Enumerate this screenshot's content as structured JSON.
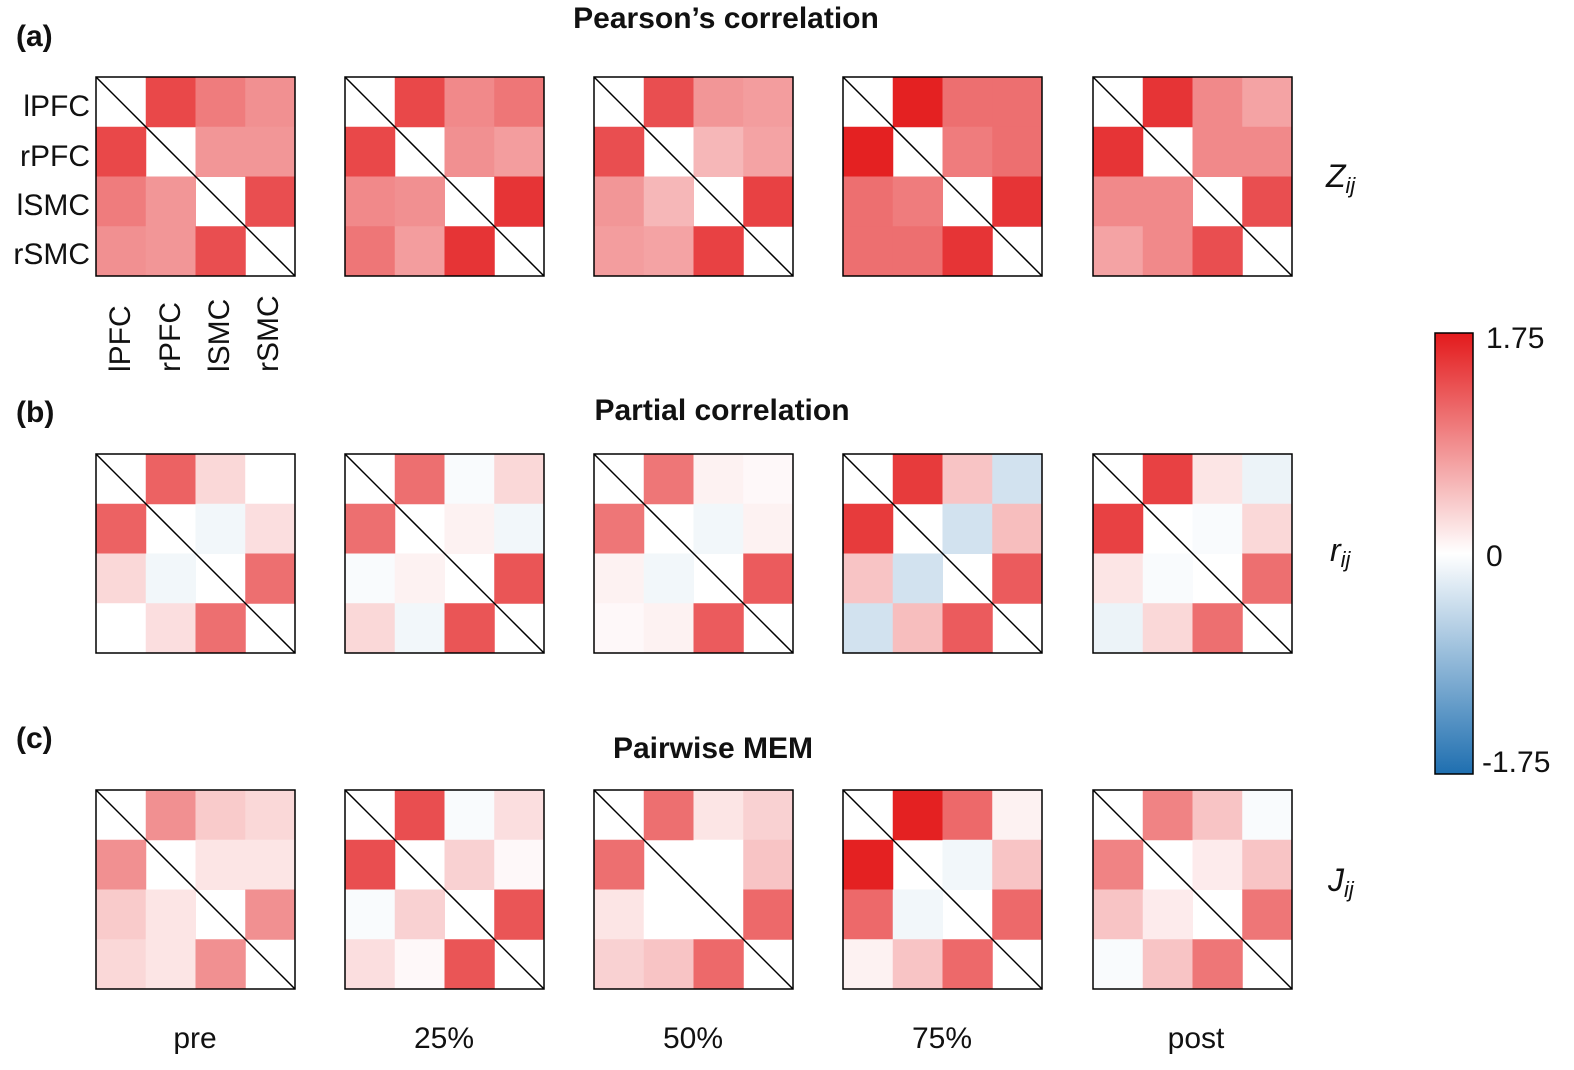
{
  "panels": [
    {
      "letter": "(a)",
      "title": "Pearson’s correlation",
      "metric": "Z",
      "metric_sub": "ij"
    },
    {
      "letter": "(b)",
      "title": "Partial correlation",
      "metric": "r",
      "metric_sub": "ij"
    },
    {
      "letter": "(c)",
      "title": "Pairwise MEM",
      "metric": "J",
      "metric_sub": "ij"
    }
  ],
  "region_labels": [
    "lPFC",
    "rPFC",
    "lSMC",
    "rSMC"
  ],
  "conditions": [
    "pre",
    "25%",
    "50%",
    "75%",
    "post"
  ],
  "colorbar": {
    "max_label": "1.75",
    "mid_label": "0",
    "min_label": "-1.75",
    "max_color": "#e31a1c",
    "mid_color": "#ffffff",
    "min_color": "#1f6fb0"
  },
  "chart_data": {
    "type": "heatmap",
    "vmin": -1.75,
    "vmax": 1.75,
    "pairs": [
      "lPFC-rPFC",
      "lPFC-lSMC",
      "lPFC-rSMC",
      "rPFC-lSMC",
      "rPFC-rSMC",
      "lSMC-rSMC"
    ],
    "matrices": [
      {
        "panel": "Pearson’s correlation",
        "condition": "pre",
        "values": [
          1.4,
          1.0,
          0.85,
          0.8,
          0.8,
          1.35
        ]
      },
      {
        "panel": "Pearson’s correlation",
        "condition": "25%",
        "values": [
          1.4,
          0.9,
          1.05,
          0.85,
          0.75,
          1.55
        ]
      },
      {
        "panel": "Pearson’s correlation",
        "condition": "50%",
        "values": [
          1.35,
          0.8,
          0.75,
          0.55,
          0.7,
          1.45
        ]
      },
      {
        "panel": "Pearson’s correlation",
        "condition": "75%",
        "values": [
          1.7,
          1.1,
          1.1,
          1.0,
          1.1,
          1.55
        ]
      },
      {
        "panel": "Pearson’s correlation",
        "condition": "post",
        "values": [
          1.55,
          0.9,
          0.7,
          0.9,
          0.9,
          1.35
        ]
      },
      {
        "panel": "Partial correlation",
        "condition": "pre",
        "values": [
          1.2,
          0.3,
          0.0,
          -0.1,
          0.25,
          1.1
        ]
      },
      {
        "panel": "Partial correlation",
        "condition": "25%",
        "values": [
          1.1,
          -0.05,
          0.3,
          0.1,
          -0.1,
          1.3
        ]
      },
      {
        "panel": "Partial correlation",
        "condition": "50%",
        "values": [
          1.05,
          0.1,
          0.05,
          -0.1,
          0.1,
          1.25
        ]
      },
      {
        "panel": "Partial correlation",
        "condition": "75%",
        "values": [
          1.5,
          0.45,
          -0.35,
          -0.35,
          0.5,
          1.25
        ]
      },
      {
        "panel": "Partial correlation",
        "condition": "post",
        "values": [
          1.45,
          0.2,
          -0.15,
          -0.05,
          0.3,
          1.1
        ]
      },
      {
        "panel": "Pairwise MEM",
        "condition": "pre",
        "values": [
          0.85,
          0.4,
          0.3,
          0.2,
          0.2,
          0.85
        ]
      },
      {
        "panel": "Pairwise MEM",
        "condition": "25%",
        "values": [
          1.35,
          -0.05,
          0.25,
          0.35,
          0.05,
          1.3
        ]
      },
      {
        "panel": "Pairwise MEM",
        "condition": "50%",
        "values": [
          1.1,
          0.2,
          0.35,
          0.0,
          0.45,
          1.15
        ]
      },
      {
        "panel": "Pairwise MEM",
        "condition": "75%",
        "values": [
          1.7,
          1.15,
          0.1,
          -0.1,
          0.45,
          1.15
        ]
      },
      {
        "panel": "Pairwise MEM",
        "condition": "post",
        "values": [
          0.95,
          0.45,
          -0.05,
          0.15,
          0.45,
          1.05
        ]
      }
    ]
  }
}
